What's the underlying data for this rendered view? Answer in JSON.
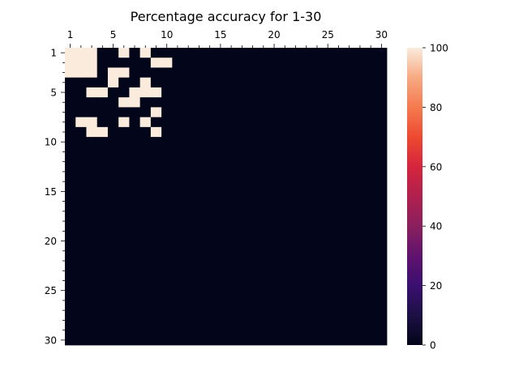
{
  "chart_data": {
    "type": "heatmap",
    "title": "Percentage accuracy for 1-30",
    "xlabel": "",
    "ylabel": "",
    "rows": 30,
    "cols": 30,
    "x_tick_labels": [
      "1",
      "5",
      "10",
      "15",
      "20",
      "25",
      "30"
    ],
    "x_tick_positions": [
      1,
      5,
      10,
      15,
      20,
      25,
      30
    ],
    "y_tick_labels": [
      "1",
      "5",
      "10",
      "15",
      "20",
      "25",
      "30"
    ],
    "y_tick_positions": [
      1,
      5,
      10,
      15,
      20,
      25,
      30
    ],
    "x_axis_position": "top",
    "vmin": 0,
    "vmax": 100,
    "default_value": 0,
    "colormap": "rocket",
    "colorbar": {
      "ticks": [
        "0",
        "20",
        "40",
        "60",
        "80",
        "100"
      ],
      "values": [
        0,
        20,
        40,
        60,
        80,
        100
      ],
      "position": "right"
    },
    "high_cells": [
      [
        1,
        1
      ],
      [
        1,
        2
      ],
      [
        1,
        3
      ],
      [
        1,
        6
      ],
      [
        1,
        8
      ],
      [
        2,
        1
      ],
      [
        2,
        2
      ],
      [
        2,
        3
      ],
      [
        2,
        9
      ],
      [
        2,
        10
      ],
      [
        3,
        1
      ],
      [
        3,
        2
      ],
      [
        3,
        3
      ],
      [
        3,
        5
      ],
      [
        3,
        6
      ],
      [
        4,
        5
      ],
      [
        4,
        8
      ],
      [
        5,
        3
      ],
      [
        5,
        4
      ],
      [
        5,
        7
      ],
      [
        5,
        8
      ],
      [
        5,
        9
      ],
      [
        6,
        6
      ],
      [
        6,
        7
      ],
      [
        7,
        9
      ],
      [
        8,
        2
      ],
      [
        8,
        3
      ],
      [
        8,
        6
      ],
      [
        8,
        8
      ],
      [
        9,
        3
      ],
      [
        9,
        4
      ],
      [
        9,
        9
      ]
    ],
    "high_value": 100,
    "grid": false
  }
}
